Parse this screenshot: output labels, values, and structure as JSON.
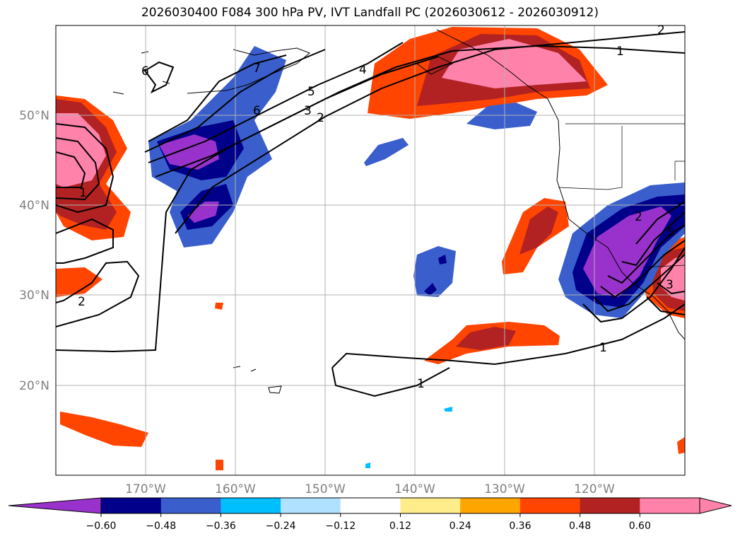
{
  "title": "2026030400 F084 300 hPa PV, IVT Landfall PC (2026030612 - 2026030912)",
  "lon_labels": [
    "170°W",
    "160°W",
    "150°W",
    "140°W",
    "130°W",
    "120°W"
  ],
  "lat_labels": [
    "50°N",
    "40°N",
    "30°N",
    "20°N"
  ],
  "colorbar": {
    "ticks": [
      "−0.60",
      "−0.48",
      "−0.36",
      "−0.24",
      "−0.12",
      "0.12",
      "0.24",
      "0.36",
      "0.48",
      "0.60"
    ],
    "colors": [
      "#9932cc",
      "#00008b",
      "#3a5fcd",
      "#00bfff",
      "#b0e2ff",
      "#ffffff",
      "#ffec8b",
      "#ffa500",
      "#ff4500",
      "#b22222",
      "#ff82ab",
      "#ff82ab"
    ]
  },
  "contour_labels": [
    "1",
    "2",
    "3",
    "4",
    "5",
    "6",
    "7"
  ],
  "map_extent": {
    "lon_min": -180,
    "lon_max": -110,
    "lat_min": 10,
    "lat_max": 60
  }
}
